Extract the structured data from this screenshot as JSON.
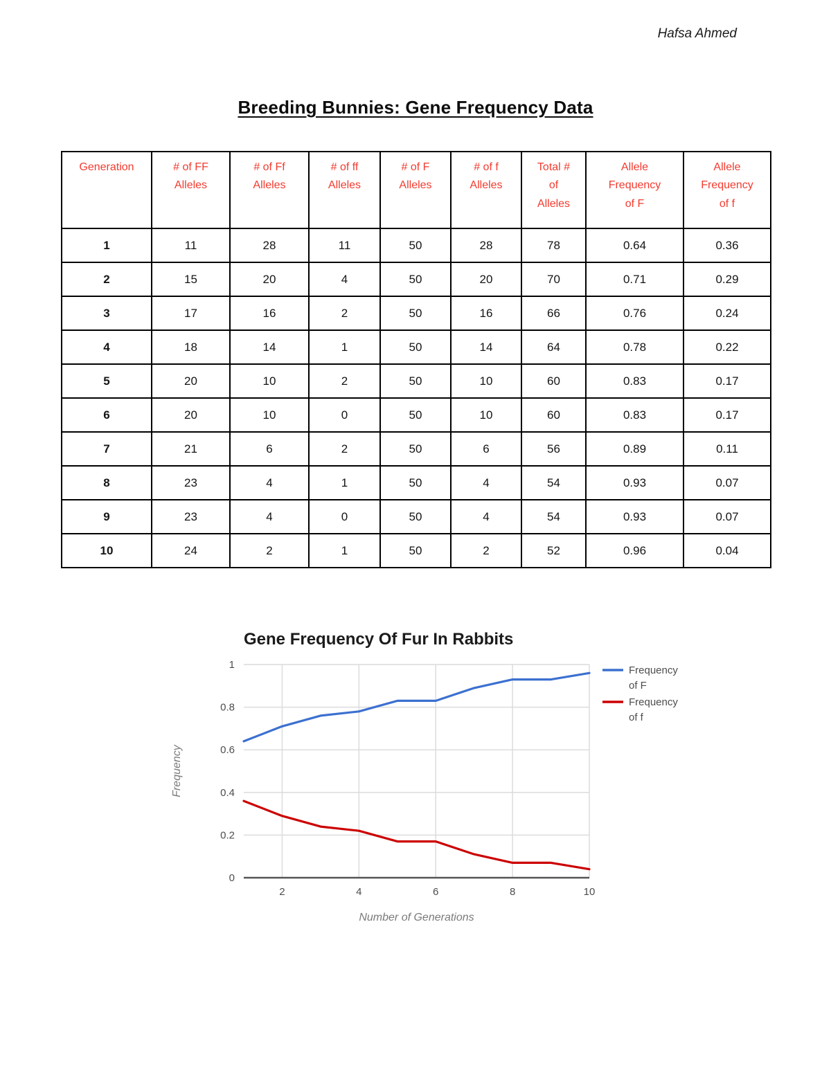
{
  "page": {
    "author": "Hafsa Ahmed",
    "title": "Breeding Bunnies: Gene Frequency Data"
  },
  "table": {
    "headers": [
      "Generation",
      "# of FF\nAlleles",
      "# of Ff\nAlleles",
      "# of ff\nAlleles",
      "# of F\nAlleles",
      "# of f\nAlleles",
      "Total #\nof\nAlleles",
      "Allele\nFrequency\nof F",
      "Allele\nFrequency\nof f"
    ],
    "rows": [
      [
        "1",
        "11",
        "28",
        "11",
        "50",
        "28",
        "78",
        "0.64",
        "0.36"
      ],
      [
        "2",
        "15",
        "20",
        "4",
        "50",
        "20",
        "70",
        "0.71",
        "0.29"
      ],
      [
        "3",
        "17",
        "16",
        "2",
        "50",
        "16",
        "66",
        "0.76",
        "0.24"
      ],
      [
        "4",
        "18",
        "14",
        "1",
        "50",
        "14",
        "64",
        "0.78",
        "0.22"
      ],
      [
        "5",
        "20",
        "10",
        "2",
        "50",
        "10",
        "60",
        "0.83",
        "0.17"
      ],
      [
        "6",
        "20",
        "10",
        "0",
        "50",
        "10",
        "60",
        "0.83",
        "0.17"
      ],
      [
        "7",
        "21",
        "6",
        "2",
        "50",
        "6",
        "56",
        "0.89",
        "0.11"
      ],
      [
        "8",
        "23",
        "4",
        "1",
        "50",
        "4",
        "54",
        "0.93",
        "0.07"
      ],
      [
        "9",
        "23",
        "4",
        "0",
        "50",
        "4",
        "54",
        "0.93",
        "0.07"
      ],
      [
        "10",
        "24",
        "2",
        "1",
        "50",
        "2",
        "52",
        "0.96",
        "0.04"
      ]
    ],
    "header_color": "#f23b2f"
  },
  "chart_data": {
    "type": "line",
    "title": "Gene Frequency Of Fur In Rabbits",
    "xlabel": "Number of Generations",
    "ylabel": "Frequency",
    "x": [
      1,
      2,
      3,
      4,
      5,
      6,
      7,
      8,
      9,
      10
    ],
    "series": [
      {
        "name": "Frequency of F",
        "color": "#3c70d0",
        "values": [
          0.64,
          0.71,
          0.76,
          0.78,
          0.83,
          0.83,
          0.89,
          0.93,
          0.93,
          0.96
        ]
      },
      {
        "name": "Frequency of f",
        "color": "#cc0000",
        "values": [
          0.36,
          0.29,
          0.24,
          0.22,
          0.17,
          0.17,
          0.11,
          0.07,
          0.07,
          0.04
        ]
      }
    ],
    "ylim": [
      0,
      1
    ],
    "yticks": [
      0,
      0.2,
      0.4,
      0.6,
      0.8,
      1
    ],
    "xticks": [
      2,
      4,
      6,
      8,
      10
    ],
    "grid": true,
    "legend_position": "right"
  }
}
